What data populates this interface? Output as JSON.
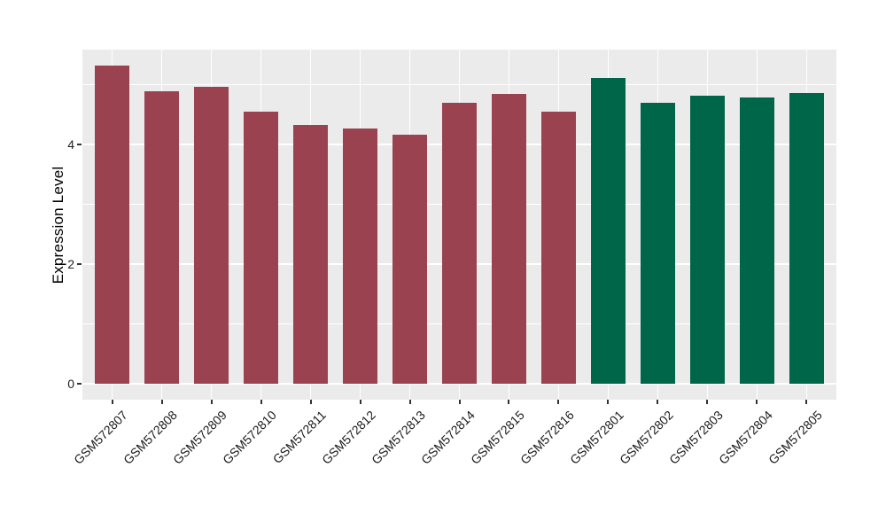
{
  "figure": {
    "background_color": "#FFFFFF",
    "panel_color": "#EBEBEB",
    "grid_color": "#FFFFFF",
    "axis_text_color": "#1A1A1A",
    "tick_mark_color": "#333333"
  },
  "chart_data": {
    "type": "bar",
    "title": "",
    "xlabel": "",
    "ylabel": "Expression Level",
    "categories": [
      "GSM572807",
      "GSM572808",
      "GSM572809",
      "GSM572810",
      "GSM572811",
      "GSM572812",
      "GSM572813",
      "GSM572814",
      "GSM572815",
      "GSM572816",
      "GSM572801",
      "GSM572802",
      "GSM572803",
      "GSM572804",
      "GSM572805"
    ],
    "values": [
      5.32,
      4.89,
      4.97,
      4.55,
      4.33,
      4.27,
      4.17,
      4.7,
      4.85,
      4.55,
      5.11,
      4.69,
      4.81,
      4.79,
      4.86
    ],
    "bar_colors": [
      "#9B4250",
      "#9B4250",
      "#9B4250",
      "#9B4250",
      "#9B4250",
      "#9B4250",
      "#9B4250",
      "#9B4250",
      "#9B4250",
      "#9B4250",
      "#00664A",
      "#00664A",
      "#00664A",
      "#00664A",
      "#00664A"
    ],
    "group_colors": {
      "maroon_group": "#9B4250",
      "green_group": "#00664A"
    },
    "yticks": [
      0,
      2,
      4
    ],
    "ytick_labels": [
      "0",
      "2",
      "4"
    ],
    "minor_yticks": [
      1,
      3,
      5
    ],
    "ylim": [
      0,
      5.59
    ],
    "grid": "white major gridlines at 0/2/4, minor at 1/3/5, vertical gridline at each category center",
    "legend_position": "none"
  }
}
